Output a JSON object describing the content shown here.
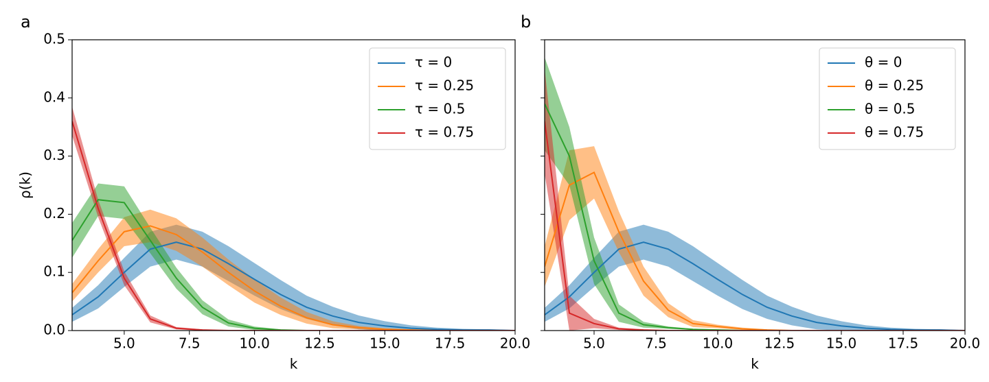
{
  "chart_data": [
    {
      "type": "line",
      "panel_label": "a",
      "x_label": "k",
      "y_label": "ρ(k)",
      "x": [
        3,
        4,
        5,
        6,
        7,
        8,
        9,
        10,
        11,
        12,
        13,
        14,
        15,
        16,
        17,
        18,
        19,
        20
      ],
      "xlim": [
        3,
        20
      ],
      "ylim": [
        0,
        0.5
      ],
      "xticks": [
        {
          "value": 5,
          "label": "5.0"
        },
        {
          "value": 7.5,
          "label": "7.5"
        },
        {
          "value": 10,
          "label": "10.0"
        },
        {
          "value": 12.5,
          "label": "12.5"
        },
        {
          "value": 15,
          "label": "15.0"
        },
        {
          "value": 17.5,
          "label": "17.5"
        },
        {
          "value": 20,
          "label": "20.0"
        }
      ],
      "yticks": [
        {
          "value": 0,
          "label": "0.0"
        },
        0.1,
        0.2,
        0.3,
        0.4,
        0.5
      ],
      "ytick_labels": true,
      "legend": "upper right",
      "series": [
        {
          "name": "τ = 0",
          "color": "#1f77b4",
          "values": [
            0.027,
            0.058,
            0.1,
            0.14,
            0.152,
            0.14,
            0.115,
            0.088,
            0.062,
            0.04,
            0.025,
            0.014,
            0.008,
            0.004,
            0.002,
            0.001,
            0.001,
            0
          ],
          "error": [
            0.012,
            0.02,
            0.025,
            0.03,
            0.03,
            0.03,
            0.03,
            0.028,
            0.025,
            0.02,
            0.016,
            0.012,
            0.008,
            0.005,
            0.003,
            0.002,
            0.001,
            0.001
          ]
        },
        {
          "name": "τ = 0.25",
          "color": "#ff7f0e",
          "values": [
            0.065,
            0.12,
            0.17,
            0.18,
            0.165,
            0.135,
            0.1,
            0.068,
            0.042,
            0.022,
            0.01,
            0.005,
            0.002,
            0.001,
            0,
            0,
            0,
            0
          ],
          "error": [
            0.015,
            0.02,
            0.025,
            0.028,
            0.028,
            0.025,
            0.022,
            0.02,
            0.015,
            0.01,
            0.006,
            0.003,
            0.002,
            0.001,
            0,
            0,
            0,
            0
          ]
        },
        {
          "name": "τ = 0.5",
          "color": "#2ca02c",
          "values": [
            0.155,
            0.225,
            0.22,
            0.155,
            0.09,
            0.04,
            0.013,
            0.004,
            0.001,
            0,
            0,
            0,
            0,
            0,
            0,
            0,
            0,
            0
          ],
          "error": [
            0.03,
            0.028,
            0.028,
            0.022,
            0.018,
            0.012,
            0.006,
            0.003,
            0.001,
            0,
            0,
            0,
            0,
            0,
            0,
            0,
            0,
            0
          ]
        },
        {
          "name": "τ = 0.75",
          "color": "#d62728",
          "values": [
            0.36,
            0.21,
            0.09,
            0.02,
            0.004,
            0.001,
            0,
            0,
            0,
            0,
            0,
            0,
            0,
            0,
            0,
            0,
            0,
            0
          ],
          "error": [
            0.025,
            0.015,
            0.012,
            0.006,
            0.002,
            0.001,
            0,
            0,
            0,
            0,
            0,
            0,
            0,
            0,
            0,
            0,
            0,
            0
          ]
        }
      ]
    },
    {
      "type": "line",
      "panel_label": "b",
      "x_label": "k",
      "x": [
        3,
        4,
        5,
        6,
        7,
        8,
        9,
        10,
        11,
        12,
        13,
        14,
        15,
        16,
        17,
        18,
        19,
        20
      ],
      "xlim": [
        3,
        20
      ],
      "ylim": [
        0,
        0.5
      ],
      "xticks": [
        {
          "value": 5,
          "label": "5.0"
        },
        {
          "value": 7.5,
          "label": "7.5"
        },
        {
          "value": 10,
          "label": "10.0"
        },
        {
          "value": 12.5,
          "label": "12.5"
        },
        {
          "value": 15,
          "label": "15.0"
        },
        {
          "value": 17.5,
          "label": "17.5"
        },
        {
          "value": 20,
          "label": "20.0"
        }
      ],
      "yticks": [
        0,
        0.1,
        0.2,
        0.3,
        0.4,
        0.5
      ],
      "ytick_labels": false,
      "legend": "upper right",
      "series": [
        {
          "name": "θ = 0",
          "color": "#1f77b4",
          "values": [
            0.027,
            0.058,
            0.1,
            0.14,
            0.152,
            0.14,
            0.115,
            0.088,
            0.062,
            0.04,
            0.025,
            0.014,
            0.008,
            0.004,
            0.002,
            0.001,
            0.001,
            0
          ],
          "error": [
            0.012,
            0.02,
            0.025,
            0.03,
            0.03,
            0.03,
            0.03,
            0.028,
            0.025,
            0.02,
            0.016,
            0.012,
            0.008,
            0.005,
            0.003,
            0.002,
            0.001,
            0.001
          ]
        },
        {
          "name": "θ = 0.25",
          "color": "#ff7f0e",
          "values": [
            0.11,
            0.25,
            0.272,
            0.17,
            0.085,
            0.035,
            0.012,
            0.007,
            0.003,
            0.001,
            0,
            0,
            0,
            0,
            0,
            0,
            0,
            0
          ],
          "error": [
            0.035,
            0.06,
            0.045,
            0.035,
            0.025,
            0.012,
            0.006,
            0.003,
            0.002,
            0.001,
            0,
            0,
            0,
            0,
            0,
            0,
            0,
            0
          ]
        },
        {
          "name": "θ = 0.5",
          "color": "#2ca02c",
          "values": [
            0.39,
            0.3,
            0.12,
            0.03,
            0.01,
            0.005,
            0.002,
            0.001,
            0,
            0,
            0,
            0,
            0,
            0,
            0,
            0,
            0,
            0
          ],
          "error": [
            0.08,
            0.05,
            0.04,
            0.015,
            0.005,
            0.002,
            0.001,
            0.001,
            0,
            0,
            0,
            0,
            0,
            0,
            0,
            0,
            0,
            0
          ]
        },
        {
          "name": "θ = 0.75",
          "color": "#d62728",
          "values": [
            0.36,
            0.03,
            0.012,
            0.003,
            0.001,
            0,
            0,
            0,
            0,
            0,
            0,
            0,
            0,
            0,
            0,
            0,
            0,
            0
          ],
          "error": [
            0.09,
            0.03,
            0.008,
            0.002,
            0.001,
            0,
            0,
            0,
            0,
            0,
            0,
            0,
            0,
            0,
            0,
            0,
            0,
            0
          ]
        }
      ]
    }
  ]
}
